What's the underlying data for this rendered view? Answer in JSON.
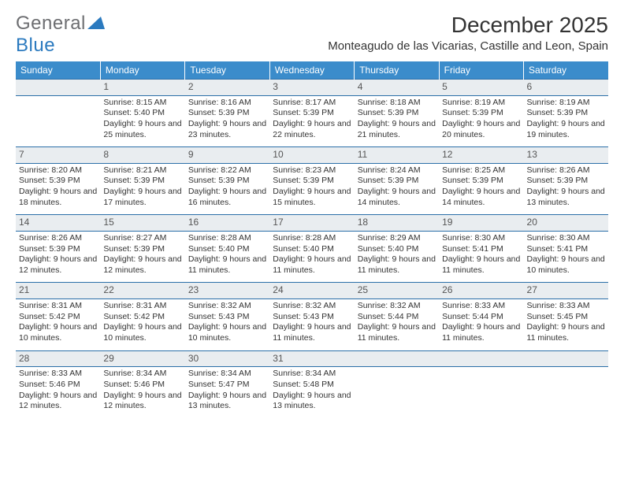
{
  "logo": {
    "text_gray": "General",
    "text_blue": "Blue"
  },
  "title": "December 2025",
  "location": "Monteagudo de las Vicarias, Castille and Leon, Spain",
  "colors": {
    "header_bg": "#3b8ccb",
    "header_text": "#ffffff",
    "weekrow_bg": "#e9edf0",
    "weekrow_border": "#2b6fa8",
    "logo_gray": "#6d6e71",
    "logo_blue": "#2b7abf"
  },
  "day_headers": [
    "Sunday",
    "Monday",
    "Tuesday",
    "Wednesday",
    "Thursday",
    "Friday",
    "Saturday"
  ],
  "weeks": [
    {
      "nums": [
        "",
        "1",
        "2",
        "3",
        "4",
        "5",
        "6"
      ],
      "cells": [
        null,
        {
          "sunrise": "8:15 AM",
          "sunset": "5:40 PM",
          "daylight": "9 hours and 25 minutes."
        },
        {
          "sunrise": "8:16 AM",
          "sunset": "5:39 PM",
          "daylight": "9 hours and 23 minutes."
        },
        {
          "sunrise": "8:17 AM",
          "sunset": "5:39 PM",
          "daylight": "9 hours and 22 minutes."
        },
        {
          "sunrise": "8:18 AM",
          "sunset": "5:39 PM",
          "daylight": "9 hours and 21 minutes."
        },
        {
          "sunrise": "8:19 AM",
          "sunset": "5:39 PM",
          "daylight": "9 hours and 20 minutes."
        },
        {
          "sunrise": "8:19 AM",
          "sunset": "5:39 PM",
          "daylight": "9 hours and 19 minutes."
        }
      ]
    },
    {
      "nums": [
        "7",
        "8",
        "9",
        "10",
        "11",
        "12",
        "13"
      ],
      "cells": [
        {
          "sunrise": "8:20 AM",
          "sunset": "5:39 PM",
          "daylight": "9 hours and 18 minutes."
        },
        {
          "sunrise": "8:21 AM",
          "sunset": "5:39 PM",
          "daylight": "9 hours and 17 minutes."
        },
        {
          "sunrise": "8:22 AM",
          "sunset": "5:39 PM",
          "daylight": "9 hours and 16 minutes."
        },
        {
          "sunrise": "8:23 AM",
          "sunset": "5:39 PM",
          "daylight": "9 hours and 15 minutes."
        },
        {
          "sunrise": "8:24 AM",
          "sunset": "5:39 PM",
          "daylight": "9 hours and 14 minutes."
        },
        {
          "sunrise": "8:25 AM",
          "sunset": "5:39 PM",
          "daylight": "9 hours and 14 minutes."
        },
        {
          "sunrise": "8:26 AM",
          "sunset": "5:39 PM",
          "daylight": "9 hours and 13 minutes."
        }
      ]
    },
    {
      "nums": [
        "14",
        "15",
        "16",
        "17",
        "18",
        "19",
        "20"
      ],
      "cells": [
        {
          "sunrise": "8:26 AM",
          "sunset": "5:39 PM",
          "daylight": "9 hours and 12 minutes."
        },
        {
          "sunrise": "8:27 AM",
          "sunset": "5:39 PM",
          "daylight": "9 hours and 12 minutes."
        },
        {
          "sunrise": "8:28 AM",
          "sunset": "5:40 PM",
          "daylight": "9 hours and 11 minutes."
        },
        {
          "sunrise": "8:28 AM",
          "sunset": "5:40 PM",
          "daylight": "9 hours and 11 minutes."
        },
        {
          "sunrise": "8:29 AM",
          "sunset": "5:40 PM",
          "daylight": "9 hours and 11 minutes."
        },
        {
          "sunrise": "8:30 AM",
          "sunset": "5:41 PM",
          "daylight": "9 hours and 11 minutes."
        },
        {
          "sunrise": "8:30 AM",
          "sunset": "5:41 PM",
          "daylight": "9 hours and 10 minutes."
        }
      ]
    },
    {
      "nums": [
        "21",
        "22",
        "23",
        "24",
        "25",
        "26",
        "27"
      ],
      "cells": [
        {
          "sunrise": "8:31 AM",
          "sunset": "5:42 PM",
          "daylight": "9 hours and 10 minutes."
        },
        {
          "sunrise": "8:31 AM",
          "sunset": "5:42 PM",
          "daylight": "9 hours and 10 minutes."
        },
        {
          "sunrise": "8:32 AM",
          "sunset": "5:43 PM",
          "daylight": "9 hours and 10 minutes."
        },
        {
          "sunrise": "8:32 AM",
          "sunset": "5:43 PM",
          "daylight": "9 hours and 11 minutes."
        },
        {
          "sunrise": "8:32 AM",
          "sunset": "5:44 PM",
          "daylight": "9 hours and 11 minutes."
        },
        {
          "sunrise": "8:33 AM",
          "sunset": "5:44 PM",
          "daylight": "9 hours and 11 minutes."
        },
        {
          "sunrise": "8:33 AM",
          "sunset": "5:45 PM",
          "daylight": "9 hours and 11 minutes."
        }
      ]
    },
    {
      "nums": [
        "28",
        "29",
        "30",
        "31",
        "",
        "",
        ""
      ],
      "cells": [
        {
          "sunrise": "8:33 AM",
          "sunset": "5:46 PM",
          "daylight": "9 hours and 12 minutes."
        },
        {
          "sunrise": "8:34 AM",
          "sunset": "5:46 PM",
          "daylight": "9 hours and 12 minutes."
        },
        {
          "sunrise": "8:34 AM",
          "sunset": "5:47 PM",
          "daylight": "9 hours and 13 minutes."
        },
        {
          "sunrise": "8:34 AM",
          "sunset": "5:48 PM",
          "daylight": "9 hours and 13 minutes."
        },
        null,
        null,
        null
      ]
    }
  ],
  "labels": {
    "sunrise": "Sunrise:",
    "sunset": "Sunset:",
    "daylight": "Daylight:"
  }
}
